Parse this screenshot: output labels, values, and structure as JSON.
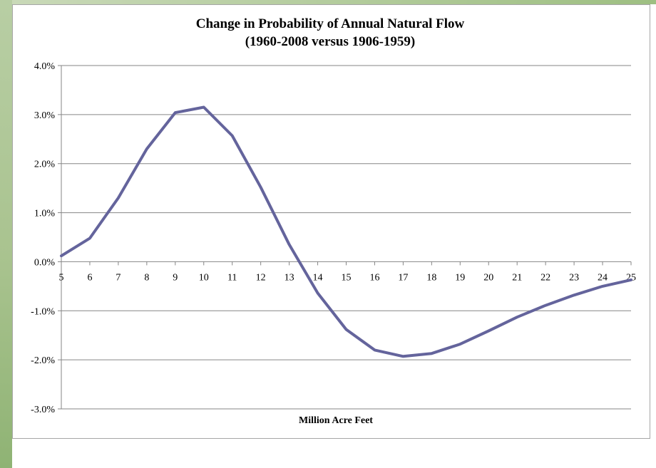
{
  "chart_data": {
    "type": "line",
    "title": "Change in Probability of Annual Natural Flow",
    "subtitle": "(1960-2008 versus 1906-1959)",
    "xlabel": "Million Acre Feet",
    "ylabel": "",
    "x": [
      5,
      6,
      7,
      8,
      9,
      10,
      11,
      12,
      13,
      14,
      15,
      16,
      17,
      18,
      19,
      20,
      21,
      22,
      23,
      24,
      25
    ],
    "series": [
      {
        "name": "",
        "color": "#64649c",
        "values": [
          0.12,
          0.48,
          1.3,
          2.3,
          3.04,
          3.15,
          2.57,
          1.52,
          0.35,
          -0.64,
          -1.38,
          -1.8,
          -1.93,
          -1.87,
          -1.68,
          -1.41,
          -1.13,
          -0.89,
          -0.68,
          -0.5,
          -0.37
        ]
      }
    ],
    "ylim": [
      -3.0,
      4.0
    ],
    "yticks": [
      -3.0,
      -2.0,
      -1.0,
      0.0,
      1.0,
      2.0,
      3.0,
      4.0
    ],
    "ytick_labels": [
      "-3.0%",
      "-2.0%",
      "-1.0%",
      "0.0%",
      "1.0%",
      "2.0%",
      "3.0%",
      "4.0%"
    ],
    "xtick_labels": [
      "5",
      "6",
      "7",
      "8",
      "9",
      "10",
      "11",
      "12",
      "13",
      "14",
      "15",
      "16",
      "17",
      "18",
      "19",
      "20",
      "21",
      "22",
      "23",
      "24",
      "25"
    ],
    "grid": true,
    "legend": "none"
  }
}
